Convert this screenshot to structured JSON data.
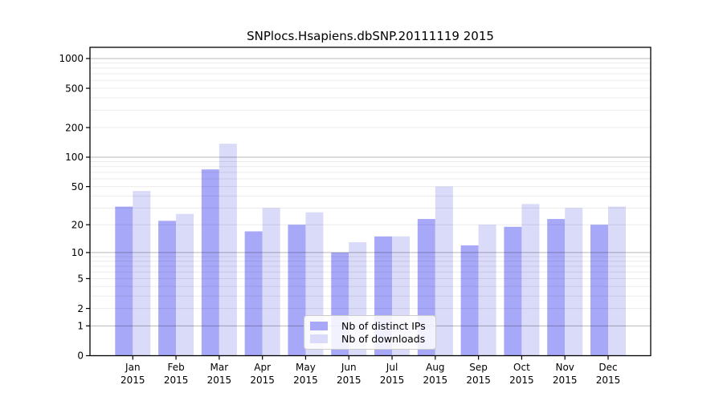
{
  "title": "SNPlocs.Hsapiens.dbSNP.20111119 2015",
  "chart_data": {
    "type": "bar",
    "title": "SNPlocs.Hsapiens.dbSNP.20111119 2015",
    "categories": [
      "Jan",
      "Feb",
      "Mar",
      "Apr",
      "May",
      "Jun",
      "Jul",
      "Aug",
      "Sep",
      "Oct",
      "Nov",
      "Dec"
    ],
    "category_year": "2015",
    "series": [
      {
        "name": "Nb of distinct IPs",
        "color": "#a8a8f8",
        "values": [
          31,
          22,
          75,
          17,
          20,
          10,
          15,
          23,
          12,
          19,
          23,
          20
        ]
      },
      {
        "name": "Nb of downloads",
        "color": "#dadaf9",
        "values": [
          45,
          26,
          137,
          30,
          27,
          13,
          15,
          50,
          20,
          33,
          30,
          31
        ]
      }
    ],
    "xlabel": "",
    "ylabel": "",
    "y_scale": "log10(1+x)",
    "y_ticks": [
      0,
      1,
      2,
      5,
      10,
      20,
      50,
      100,
      200,
      500,
      1000
    ],
    "ylim": [
      0,
      1400
    ],
    "grid": "horizontal-log",
    "legend_position": "lower-center",
    "colors": {
      "frame": "#000000",
      "major_grid": "#b5b5b5",
      "minor_grid": "#ebebeb",
      "text": "#000000"
    }
  }
}
